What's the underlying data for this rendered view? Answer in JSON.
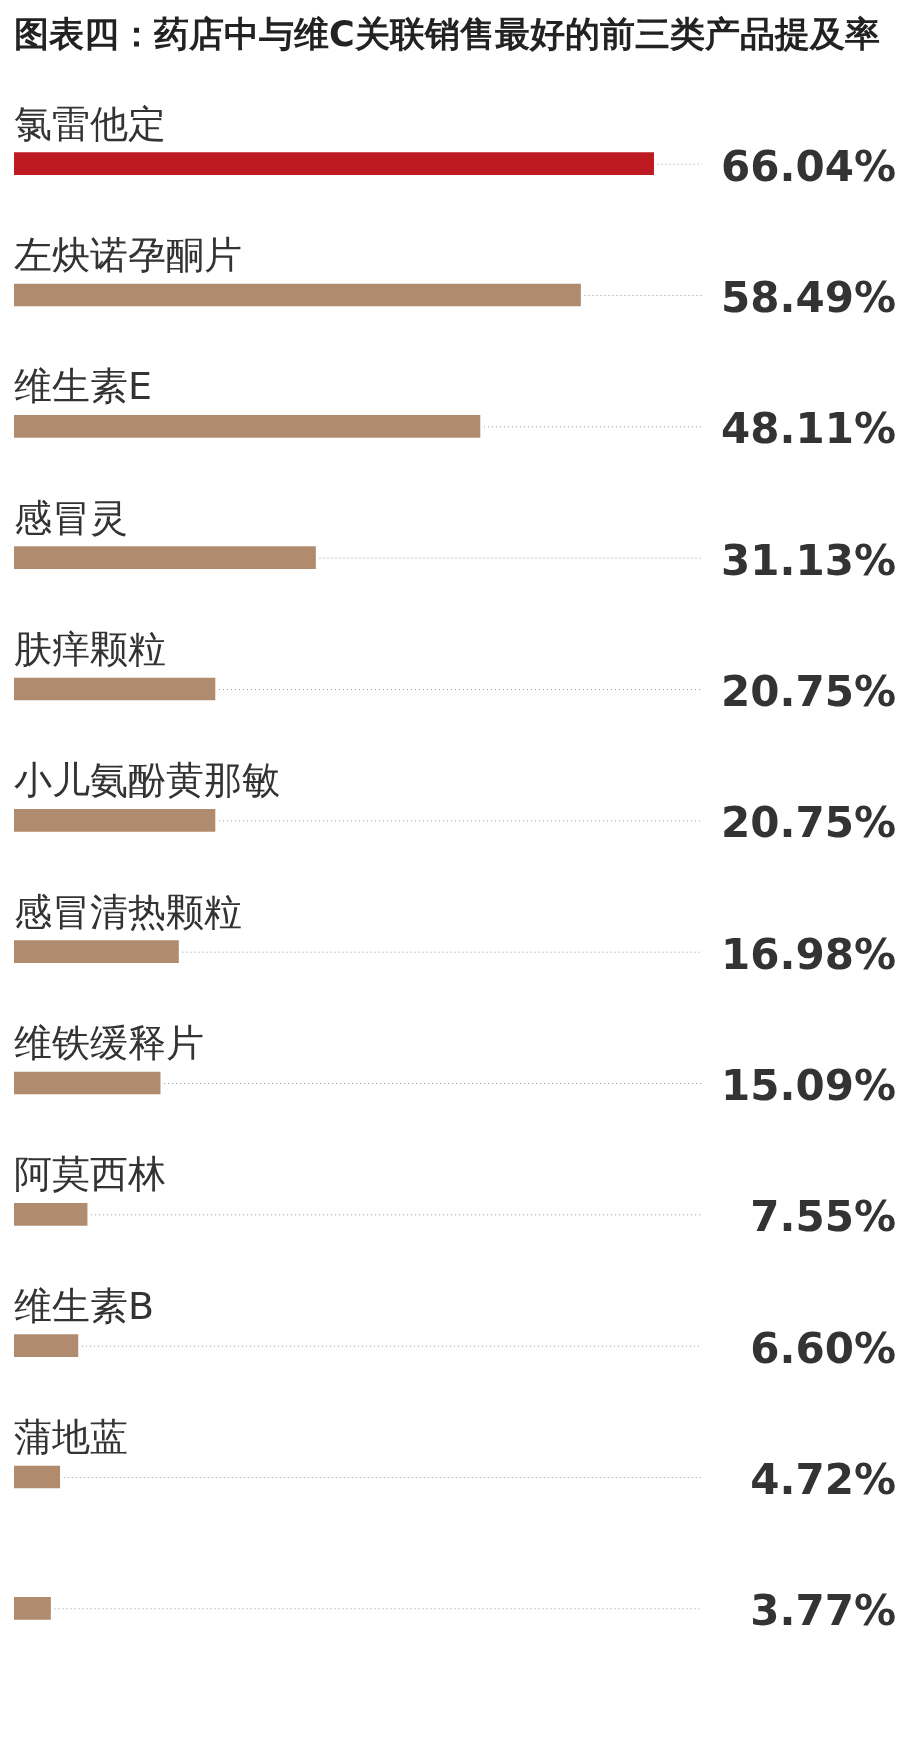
{
  "chart_data": {
    "type": "bar",
    "orientation": "horizontal",
    "title": "图表四：药店中与维C关联销售最好的前三类产品提及率",
    "categories": [
      "氯雷他定",
      "左炔诺孕酮片",
      "维生素E",
      "感冒灵",
      "肤痒颗粒",
      "小儿氨酚黄那敏",
      "感冒清热颗粒",
      "维铁缓释片",
      "阿莫西林",
      "维生素B",
      "蒲地蓝",
      null
    ],
    "values": [
      66.04,
      58.49,
      48.11,
      31.13,
      20.75,
      20.75,
      16.98,
      15.09,
      7.55,
      6.6,
      4.72,
      3.77
    ],
    "value_labels": [
      "66.04%",
      "58.49%",
      "48.11%",
      "31.13%",
      "20.75%",
      "20.75%",
      "16.98%",
      "15.09%",
      "7.55%",
      "6.60%",
      "4.72%",
      "3.77%"
    ],
    "colors": [
      "#be1a22",
      "#b08b6e",
      "#b08b6e",
      "#b08b6e",
      "#b08b6e",
      "#b08b6e",
      "#b08b6e",
      "#b08b6e",
      "#b08b6e",
      "#b08b6e",
      "#b08b6e",
      "#b08b6e"
    ],
    "legend": false
  }
}
